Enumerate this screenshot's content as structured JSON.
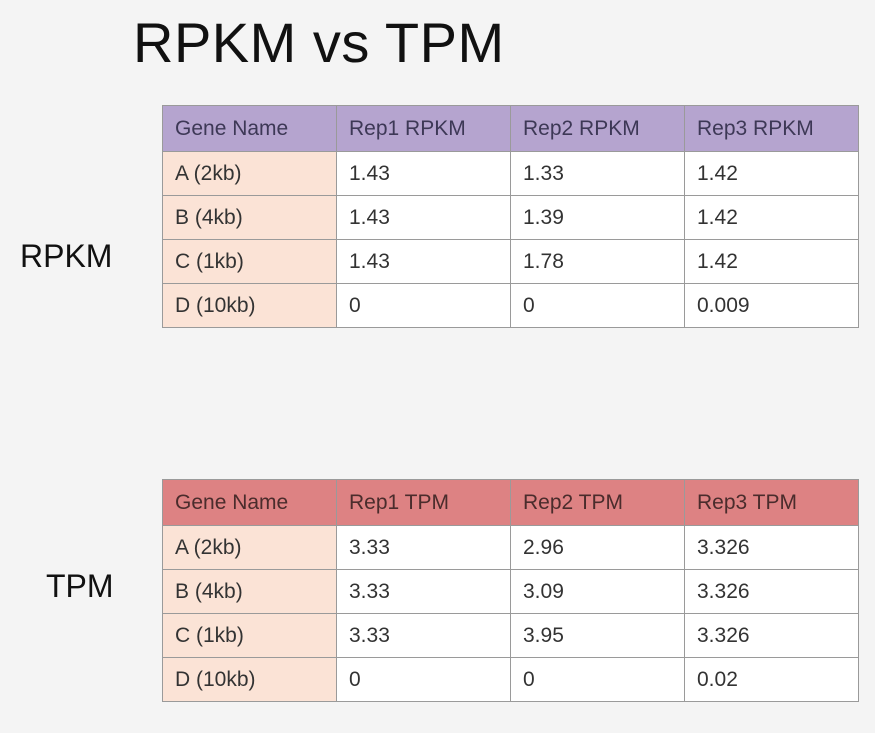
{
  "title": "RPKM vs TPM",
  "rpkm": {
    "side_label": "RPKM",
    "headers": [
      "Gene Name",
      "Rep1 RPKM",
      "Rep2 RPKM",
      "Rep3 RPKM"
    ],
    "rows": [
      [
        "A (2kb)",
        "1.43",
        "1.33",
        "1.42"
      ],
      [
        "B (4kb)",
        "1.43",
        "1.39",
        "1.42"
      ],
      [
        "C (1kb)",
        "1.43",
        "1.78",
        "1.42"
      ],
      [
        "D (10kb)",
        "0",
        "0",
        "0.009"
      ]
    ],
    "header_color": "#b5a4cf",
    "gene_cell_color": "#fbe3d6"
  },
  "tpm": {
    "side_label": "TPM",
    "headers": [
      "Gene Name",
      "Rep1 TPM",
      "Rep2 TPM",
      "Rep3 TPM"
    ],
    "rows": [
      [
        "A (2kb)",
        "3.33",
        "2.96",
        "3.326"
      ],
      [
        "B (4kb)",
        "3.33",
        "3.09",
        "3.326"
      ],
      [
        "C (1kb)",
        "3.33",
        "3.95",
        "3.326"
      ],
      [
        "D (10kb)",
        "0",
        "0",
        "0.02"
      ]
    ],
    "header_color": "#dd8283",
    "gene_cell_color": "#fbe3d6"
  }
}
